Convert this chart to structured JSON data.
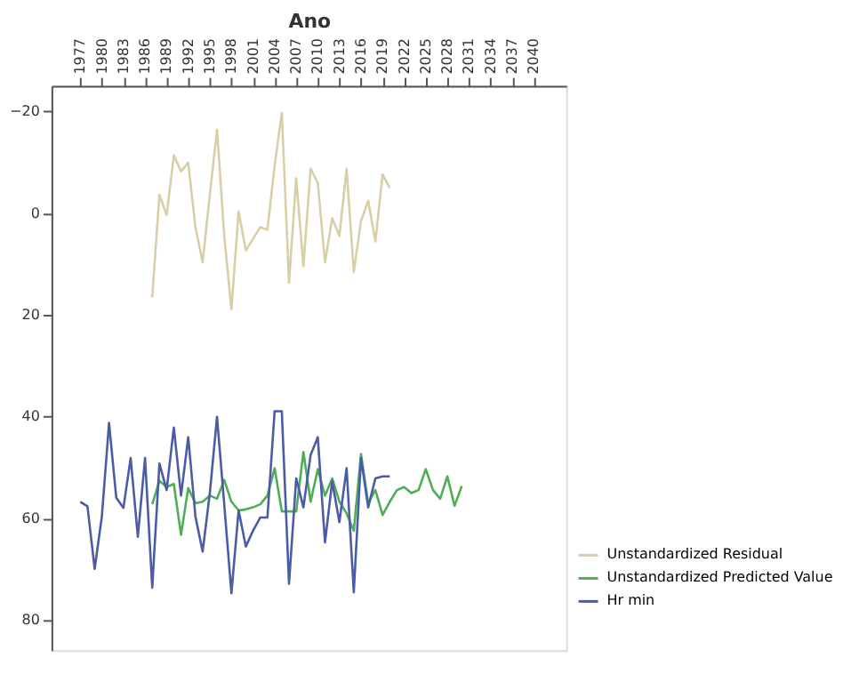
{
  "chart_data": {
    "type": "line",
    "xlabel": "Ano",
    "xlim": [
      1973,
      2044.5
    ],
    "xticks": [
      1977,
      1980,
      1983,
      1986,
      1989,
      1992,
      1995,
      1998,
      2001,
      2004,
      2007,
      2010,
      2013,
      2016,
      2019,
      2022,
      2025,
      2028,
      2031,
      2034,
      2037,
      2040
    ],
    "ylim": [
      86,
      -25
    ],
    "yticks": [
      -20,
      0,
      20,
      40,
      60,
      80
    ],
    "grid": false,
    "legend": "bottom right",
    "marker": "none",
    "line_style": "solid",
    "series": [
      {
        "name": "Unstandardized Residual",
        "color": "#d8cfa6",
        "x": [
          1987,
          1988,
          1989,
          1990,
          1991,
          1992,
          1993,
          1994,
          1995,
          1996,
          1997,
          1998,
          1999,
          2000,
          2001,
          2002,
          2003,
          2004,
          2005,
          2006,
          2007,
          2008,
          2009,
          2010,
          2011,
          2012,
          2013,
          2014,
          2015,
          2016,
          2017,
          2018,
          2019,
          2020
        ],
        "values": [
          16.6,
          -3.6,
          0.4,
          -11.3,
          -8.2,
          -9.9,
          2.8,
          9.7,
          -3.6,
          -16.4,
          4.5,
          18.9,
          -0.3,
          7.4,
          5.1,
          2.8,
          3.3,
          -9.3,
          -19.7,
          13.7,
          -6.8,
          10.5,
          -8.7,
          -5.9,
          9.7,
          1,
          4.5,
          -8.7,
          11.6,
          1.6,
          -2.4,
          5.6,
          -7.6,
          -4.9
        ]
      },
      {
        "name": "Unstandardized Predicted Value",
        "color": "#4fae55",
        "x": [
          1987,
          1988,
          1989,
          1990,
          1991,
          1992,
          1993,
          1994,
          1995,
          1996,
          1997,
          1998,
          1999,
          2000,
          2001,
          2002,
          2003,
          2004,
          2005,
          2006,
          2007,
          2008,
          2009,
          2010,
          2011,
          2012,
          2013,
          2014,
          2015,
          2016,
          2017,
          2018,
          2019,
          2020,
          2021,
          2022,
          2023,
          2024,
          2025,
          2026,
          2027,
          2028,
          2029,
          2030
        ],
        "values": [
          57.3,
          52.7,
          53.9,
          53.3,
          63.3,
          54.1,
          57.1,
          56.8,
          55.6,
          56.2,
          52.5,
          56.8,
          58.5,
          58.3,
          57.9,
          57.3,
          55.6,
          50.2,
          58.7,
          58.7,
          58.7,
          47,
          56.8,
          50.4,
          55.6,
          52.2,
          56.8,
          59.1,
          62.5,
          47.4,
          57.1,
          54.5,
          59.4,
          56.8,
          54.5,
          53.9,
          55.1,
          54.5,
          50.4,
          54.5,
          56.2,
          51.8,
          57.6,
          53.7
        ]
      },
      {
        "name": "Hr min",
        "color": "#4a5ca6",
        "x": [
          1977,
          1978,
          1979,
          1980,
          1981,
          1982,
          1983,
          1984,
          1985,
          1986,
          1987,
          1988,
          1989,
          1990,
          1991,
          1992,
          1993,
          1994,
          1995,
          1996,
          1997,
          1998,
          1999,
          2000,
          2001,
          2002,
          2003,
          2004,
          2005,
          2006,
          2007,
          2008,
          2009,
          2010,
          2011,
          2012,
          2013,
          2014,
          2015,
          2016,
          2017,
          2018,
          2019,
          2020
        ],
        "values": [
          56.8,
          57.7,
          70,
          59.7,
          41.3,
          56,
          58,
          48.2,
          63.7,
          48.2,
          73.7,
          49.3,
          54.5,
          42.2,
          55.6,
          44.1,
          59.7,
          66.6,
          55.1,
          40.1,
          57.3,
          74.8,
          58.5,
          65.6,
          62.5,
          59.9,
          59.9,
          39,
          39,
          72.9,
          52.2,
          57.9,
          47.6,
          44.1,
          64.8,
          52.8,
          60.8,
          50.2,
          74.6,
          48.2,
          57.9,
          52.2,
          51.8,
          51.8
        ]
      }
    ]
  }
}
